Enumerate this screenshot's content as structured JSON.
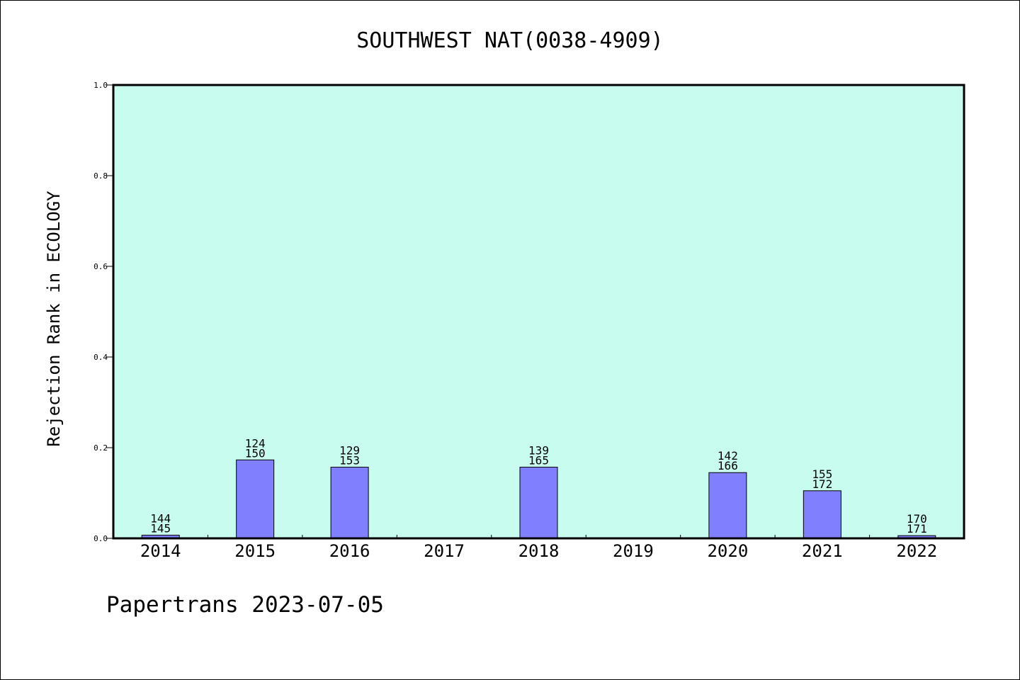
{
  "footer": "Papertrans 2023-07-05",
  "chart_data": {
    "type": "bar",
    "title": "SOUTHWEST NAT(0038-4909)",
    "ylabel": "Rejection Rank in ECOLOGY",
    "xlabel": "",
    "ylim": [
      0,
      1.0
    ],
    "yticks": [
      "0.0",
      "0.2",
      "0.4",
      "0.6",
      "0.8",
      "1.0"
    ],
    "categories": [
      "2014",
      "2015",
      "2016",
      "2017",
      "2018",
      "2019",
      "2020",
      "2021",
      "2022"
    ],
    "values": [
      0.007,
      0.173,
      0.157,
      null,
      0.157,
      null,
      0.145,
      0.105,
      0.006
    ],
    "labels_top": [
      "144",
      "124",
      "129",
      "",
      "139",
      "",
      "142",
      "155",
      "170"
    ],
    "labels_bottom": [
      "145",
      "150",
      "153",
      "",
      "165",
      "",
      "166",
      "172",
      "171"
    ],
    "grid": false,
    "colors": {
      "plot_bg": "#c8fcef",
      "bar": "#8080ff",
      "bar_edge": "#000000"
    }
  }
}
